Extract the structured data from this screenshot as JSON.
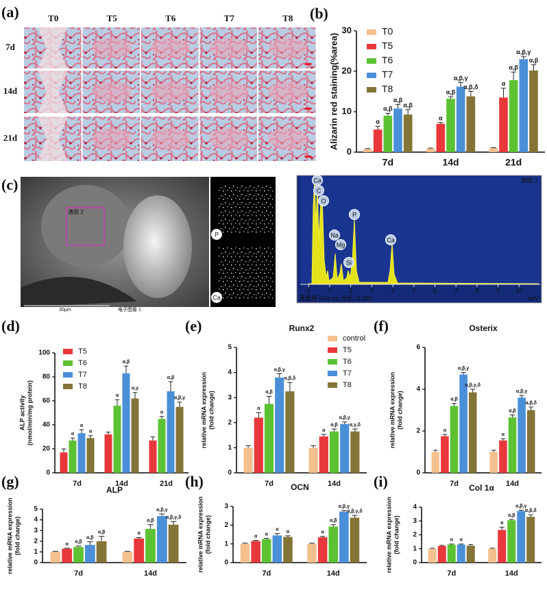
{
  "panel_labels": [
    "(a)",
    "(b)",
    "(c)",
    "(d)",
    "(e)",
    "(f)",
    "(g)",
    "(h)",
    "(i)"
  ],
  "micrographs": {
    "columns": [
      "T0",
      "T5",
      "T6",
      "T7",
      "T8"
    ],
    "rows": [
      "7d",
      "14d",
      "21d"
    ]
  },
  "sem": {
    "region_label": "谱图 2",
    "scale_label": "30μm",
    "image_caption": "电子图像 1"
  },
  "eds_maps": [
    "P",
    "Ca"
  ],
  "eds": {
    "title": "谱图 2",
    "peak_labels": [
      "Ca",
      "C",
      "O",
      "P",
      "Na",
      "Mg",
      "Si",
      "Ca"
    ],
    "xlim": [
      -0.4,
      11
    ],
    "xticks": [
      0,
      1,
      2,
      3,
      4,
      5,
      6,
      7,
      8,
      9,
      10
    ],
    "xlabel": "keV",
    "footer": "满量程 649 cts 光标: 0.000"
  },
  "chart_data": [
    {
      "type": "bar",
      "ylabel": [
        "Alizarin red staining(%area)"
      ],
      "categories": [
        "7d",
        "14d",
        "21d"
      ],
      "ylim": [
        0,
        30
      ],
      "yticks": [
        0,
        10,
        20,
        30
      ],
      "legend": "upper left",
      "series": [
        {
          "name": "T0",
          "color": "#f4c08e",
          "values": [
            0.8,
            0.9,
            1.0
          ],
          "errors": [
            0.1,
            0.1,
            0.1
          ],
          "annotations": [
            null,
            null,
            null
          ]
        },
        {
          "name": "T5",
          "color": "#e8383b",
          "values": [
            5.6,
            7.0,
            13.5
          ],
          "errors": [
            0.8,
            0.3,
            2.3
          ],
          "annotations": [
            "α",
            "α",
            "α"
          ]
        },
        {
          "name": "T6",
          "color": "#5cc234",
          "values": [
            9.0,
            13.2,
            17.8
          ],
          "errors": [
            0.6,
            0.5,
            2.0
          ],
          "annotations": [
            "α,β",
            "α,β",
            "α,β"
          ]
        },
        {
          "name": "T7",
          "color": "#4b8fd8",
          "values": [
            10.8,
            16.2,
            23.0
          ],
          "errors": [
            1.0,
            1.0,
            0.6
          ],
          "annotations": [
            "α,β",
            "α,β,γ",
            "α,β,γ"
          ]
        },
        {
          "name": "T8",
          "color": "#857438",
          "values": [
            9.3,
            13.8,
            20.2
          ],
          "errors": [
            1.2,
            1.2,
            1.4
          ],
          "annotations": [
            "α,β",
            "α,β,δ",
            "α,β"
          ]
        }
      ]
    },
    {
      "type": "bar",
      "ylabel": [
        "ALP activity",
        "(nmol/min/mg protein)"
      ],
      "categories": [
        "7d",
        "14d",
        "21d"
      ],
      "ylim": [
        0,
        100
      ],
      "yticks": [
        0,
        20,
        40,
        60,
        80,
        100
      ],
      "legend": "upper left",
      "series": [
        {
          "name": "T5",
          "color": "#e8383b",
          "values": [
            17,
            32,
            27
          ],
          "errors": [
            3,
            2,
            3
          ],
          "annotations": [
            null,
            null,
            null
          ]
        },
        {
          "name": "T6",
          "color": "#5cc234",
          "values": [
            27,
            56,
            45
          ],
          "errors": [
            2,
            5,
            2
          ],
          "annotations": [
            "α",
            "α",
            "α"
          ]
        },
        {
          "name": "T7",
          "color": "#4b8fd8",
          "values": [
            33,
            83,
            68
          ],
          "errors": [
            3,
            6,
            8
          ],
          "annotations": [
            "α",
            "α,β",
            "α,β"
          ]
        },
        {
          "name": "T8",
          "color": "#857438",
          "values": [
            29,
            62,
            55
          ],
          "errors": [
            2,
            5,
            4
          ],
          "annotations": [
            "α",
            "α,γ",
            "α,β,γ"
          ]
        }
      ]
    },
    {
      "type": "bar",
      "title": "Runx2",
      "ylabel": [
        "relative mRNA expression",
        "(fold change)"
      ],
      "categories": [
        "7d",
        "14d"
      ],
      "ylim": [
        0,
        5
      ],
      "yticks": [
        0,
        1,
        2,
        3,
        4,
        5
      ],
      "legend": "upper center",
      "series": [
        {
          "name": "control",
          "color": "#f4c08e",
          "values": [
            1.0,
            1.0
          ],
          "errors": [
            0.08,
            0.08
          ],
          "annotations": [
            null,
            null
          ]
        },
        {
          "name": "T5",
          "color": "#e8383b",
          "values": [
            2.2,
            1.45
          ],
          "errors": [
            0.2,
            0.08
          ],
          "annotations": [
            "α",
            "α"
          ]
        },
        {
          "name": "T6",
          "color": "#5cc234",
          "values": [
            2.75,
            1.65
          ],
          "errors": [
            0.3,
            0.1
          ],
          "annotations": [
            "α,β",
            "α,β"
          ]
        },
        {
          "name": "T7",
          "color": "#4b8fd8",
          "values": [
            3.8,
            1.95
          ],
          "errors": [
            0.15,
            0.08
          ],
          "annotations": [
            "α,β,γ",
            "α,β,γ"
          ]
        },
        {
          "name": "T8",
          "color": "#857438",
          "values": [
            3.25,
            1.65
          ],
          "errors": [
            0.35,
            0.1
          ],
          "annotations": [
            "α,β,δ",
            "α,γ,δ"
          ]
        }
      ]
    },
    {
      "type": "bar",
      "title": "Osterix",
      "ylabel": [
        "relative mRNA expression",
        "(fold change)"
      ],
      "categories": [
        "7d",
        "14d"
      ],
      "ylim": [
        0,
        6
      ],
      "yticks": [
        0,
        2,
        4,
        6
      ],
      "legend": "none",
      "series": [
        {
          "name": "control",
          "color": "#f4c08e",
          "values": [
            1.0,
            1.0
          ],
          "errors": [
            0.08,
            0.08
          ],
          "annotations": [
            null,
            null
          ]
        },
        {
          "name": "T5",
          "color": "#e8383b",
          "values": [
            1.75,
            1.55
          ],
          "errors": [
            0.08,
            0.08
          ],
          "annotations": [
            "α",
            "α"
          ]
        },
        {
          "name": "T6",
          "color": "#5cc234",
          "values": [
            3.2,
            2.65
          ],
          "errors": [
            0.12,
            0.12
          ],
          "annotations": [
            "α,β",
            "α,β"
          ]
        },
        {
          "name": "T7",
          "color": "#4b8fd8",
          "values": [
            4.7,
            3.6
          ],
          "errors": [
            0.1,
            0.1
          ],
          "annotations": [
            "α,β,γ",
            "α,β,γ"
          ]
        },
        {
          "name": "T8",
          "color": "#857438",
          "values": [
            3.85,
            3.0
          ],
          "errors": [
            0.15,
            0.15
          ],
          "annotations": [
            "α,β,γ,δ",
            "α,β,δ"
          ]
        }
      ]
    },
    {
      "type": "bar",
      "title": "ALP",
      "ylabel": [
        "relative mRNA expression",
        "(fold change)"
      ],
      "categories": [
        "7d",
        "14d"
      ],
      "ylim": [
        0,
        5
      ],
      "yticks": [
        0,
        1,
        2,
        3,
        4,
        5
      ],
      "legend": "none",
      "series": [
        {
          "name": "control",
          "color": "#f4c08e",
          "values": [
            1.0,
            1.0
          ],
          "errors": [
            0.05,
            0.05
          ],
          "annotations": [
            null,
            null
          ]
        },
        {
          "name": "T5",
          "color": "#e8383b",
          "values": [
            1.3,
            2.25
          ],
          "errors": [
            0.05,
            0.1
          ],
          "annotations": [
            "α",
            "α"
          ]
        },
        {
          "name": "T6",
          "color": "#5cc234",
          "values": [
            1.45,
            3.15
          ],
          "errors": [
            0.1,
            0.4
          ],
          "annotations": [
            "α,β",
            "α,β"
          ]
        },
        {
          "name": "T7",
          "color": "#4b8fd8",
          "values": [
            1.65,
            4.35
          ],
          "errors": [
            0.3,
            0.2
          ],
          "annotations": [
            "α,β",
            "α,β,γ"
          ]
        },
        {
          "name": "T8",
          "color": "#857438",
          "values": [
            2.0,
            3.55
          ],
          "errors": [
            0.45,
            0.3
          ],
          "annotations": [
            "α,β",
            "α,β,γ,δ"
          ]
        }
      ]
    },
    {
      "type": "bar",
      "title": "OCN",
      "ylabel": [
        "relative mRNA expression",
        "(fold change)"
      ],
      "categories": [
        "7d",
        "14d"
      ],
      "ylim": [
        0,
        3
      ],
      "yticks": [
        0,
        1,
        2,
        3
      ],
      "legend": "none",
      "series": [
        {
          "name": "control",
          "color": "#f4c08e",
          "values": [
            1.0,
            1.0
          ],
          "errors": [
            0.04,
            0.04
          ],
          "annotations": [
            null,
            null
          ]
        },
        {
          "name": "T5",
          "color": "#e8383b",
          "values": [
            1.15,
            1.35
          ],
          "errors": [
            0.04,
            0.05
          ],
          "annotations": [
            "α",
            "α"
          ]
        },
        {
          "name": "T6",
          "color": "#5cc234",
          "values": [
            1.25,
            1.92
          ],
          "errors": [
            0.05,
            0.1
          ],
          "annotations": [
            "α",
            "α,β"
          ]
        },
        {
          "name": "T7",
          "color": "#4b8fd8",
          "values": [
            1.45,
            2.72
          ],
          "errors": [
            0.1,
            0.06
          ],
          "annotations": [
            "α",
            "α,β,γ"
          ]
        },
        {
          "name": "T8",
          "color": "#857438",
          "values": [
            1.37,
            2.4
          ],
          "errors": [
            0.06,
            0.12
          ],
          "annotations": [
            "α",
            "α,β,γ,δ"
          ]
        }
      ]
    },
    {
      "type": "bar",
      "title": "Col 1α",
      "ylabel": [
        "relative mRNA expression",
        "(fold change)"
      ],
      "categories": [
        "7d",
        "14d"
      ],
      "ylim": [
        0,
        4
      ],
      "yticks": [
        0,
        1,
        2,
        3,
        4
      ],
      "legend": "none",
      "series": [
        {
          "name": "control",
          "color": "#f4c08e",
          "values": [
            1.0,
            1.0
          ],
          "errors": [
            0.04,
            0.04
          ],
          "annotations": [
            null,
            null
          ]
        },
        {
          "name": "T5",
          "color": "#e8383b",
          "values": [
            1.2,
            2.35
          ],
          "errors": [
            0.04,
            0.2
          ],
          "annotations": [
            null,
            "α"
          ]
        },
        {
          "name": "T6",
          "color": "#5cc234",
          "values": [
            1.3,
            3.05
          ],
          "errors": [
            0.04,
            0.06
          ],
          "annotations": [
            "α",
            "α,β"
          ]
        },
        {
          "name": "T7",
          "color": "#4b8fd8",
          "values": [
            1.3,
            3.72
          ],
          "errors": [
            0.04,
            0.06
          ],
          "annotations": [
            "α",
            "α,β,γ"
          ]
        },
        {
          "name": "T8",
          "color": "#857438",
          "values": [
            1.22,
            3.3
          ],
          "errors": [
            0.08,
            0.15
          ],
          "annotations": [
            null,
            "α,β,δ"
          ]
        }
      ]
    }
  ]
}
